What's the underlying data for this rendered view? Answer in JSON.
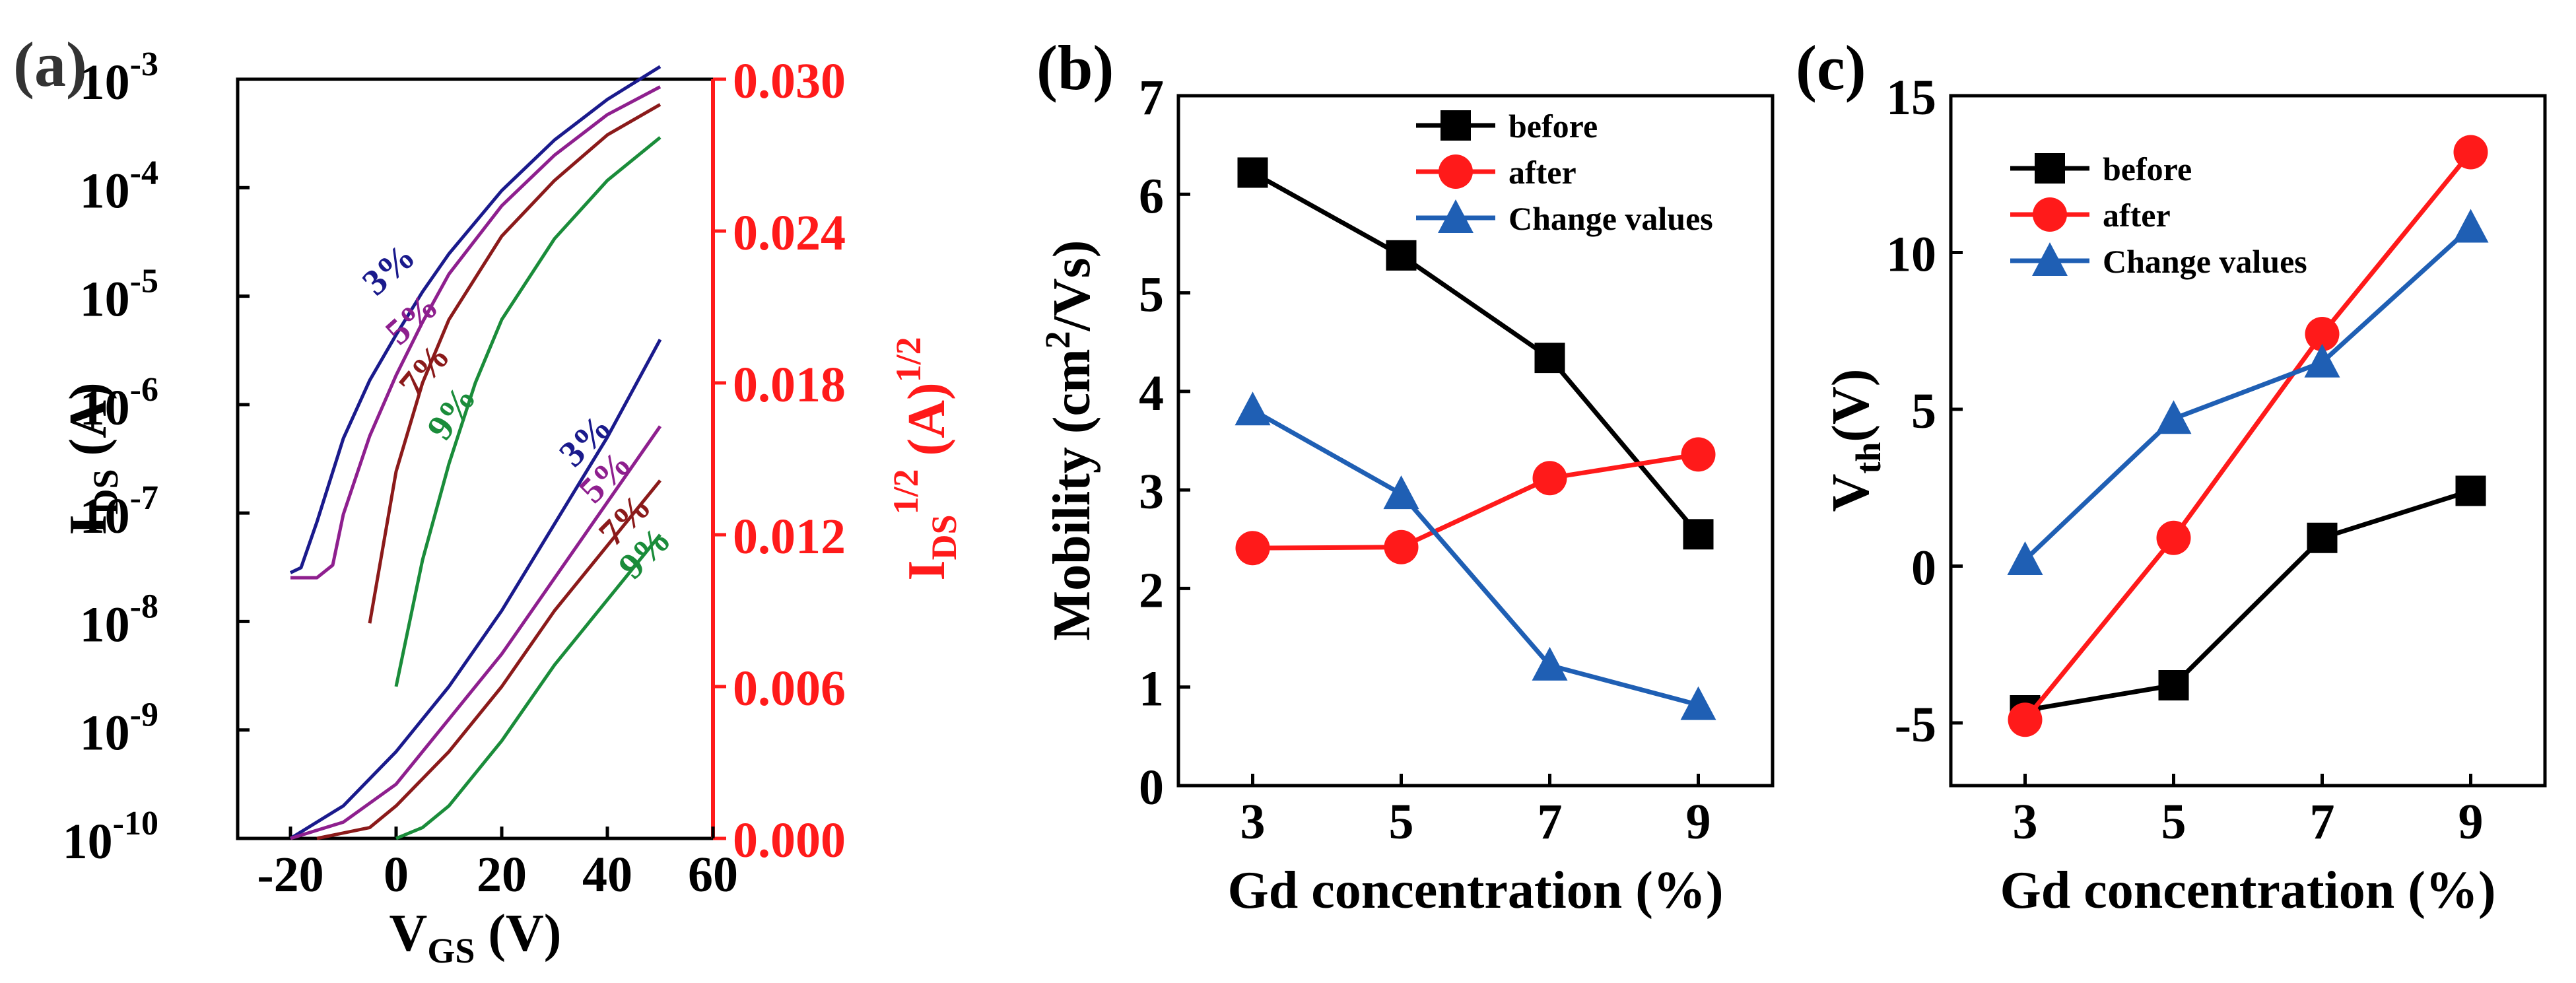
{
  "chart_data": [
    {
      "panel_label": "(a)",
      "type": "line",
      "title": "",
      "xlabel": "V",
      "xlabel_sub": "GS",
      "xlabel_unit": " (V)",
      "ylabel_left": "I",
      "ylabel_left_sub": "DS",
      "ylabel_left_unit": " (A)",
      "ylabel_right": "I",
      "ylabel_right_sub": "DS",
      "ylabel_right_sup": "1/2",
      "ylabel_right_unit": " (A)",
      "ylabel_right_unit_sup": "1/2",
      "xlim": [
        -30,
        60
      ],
      "xticks": [
        "-20",
        "0",
        "20",
        "40",
        "60"
      ],
      "xtick_values": [
        -20,
        0,
        20,
        40,
        60
      ],
      "ylim_left_log10": [
        -10,
        -3
      ],
      "yticks_left_base": "10",
      "yticks_left_exp": [
        "-10",
        "-9",
        "-8",
        "-7",
        "-6",
        "-5",
        "-4",
        "-3"
      ],
      "ylim_right": [
        0.0,
        0.03
      ],
      "yticks_right": [
        "0.000",
        "0.006",
        "0.012",
        "0.018",
        "0.024",
        "0.030"
      ],
      "series_labels": [
        "3%",
        "5%",
        "7%",
        "9%",
        "3%",
        "5%",
        "7%",
        "9%"
      ],
      "series": [
        {
          "name": "3%",
          "axis": "right",
          "color": "#1a1a8c",
          "x": [
            -20,
            -18,
            -15,
            -10,
            -5,
            0,
            5,
            10,
            20,
            30,
            40,
            50
          ],
          "y": [
            0.0105,
            0.0107,
            0.0125,
            0.0158,
            0.0181,
            0.0199,
            0.0216,
            0.0231,
            0.0256,
            0.0276,
            0.0292,
            0.0305
          ]
        },
        {
          "name": "5%",
          "axis": "right",
          "color": "#8e1f8e",
          "x": [
            -20,
            -15,
            -12,
            -10,
            -5,
            0,
            5,
            10,
            20,
            30,
            40,
            50
          ],
          "y": [
            0.0103,
            0.0103,
            0.0108,
            0.0128,
            0.0159,
            0.0183,
            0.0204,
            0.0223,
            0.025,
            0.027,
            0.0286,
            0.0297
          ]
        },
        {
          "name": "7%",
          "axis": "right",
          "color": "#8b1a1a",
          "x": [
            -5,
            0,
            5,
            10,
            20,
            30,
            40,
            50
          ],
          "y": [
            0.0085,
            0.0145,
            0.018,
            0.0205,
            0.0238,
            0.026,
            0.0278,
            0.029
          ]
        },
        {
          "name": "9%",
          "axis": "right",
          "color": "#1a8c3a",
          "x": [
            0,
            5,
            10,
            15,
            20,
            30,
            40,
            50
          ],
          "y": [
            0.006,
            0.011,
            0.0148,
            0.018,
            0.0205,
            0.0237,
            0.026,
            0.0277
          ]
        },
        {
          "name": "3%",
          "axis": "left",
          "color": "#1a1a8c",
          "x": [
            -20,
            -10,
            0,
            10,
            20,
            30,
            40,
            50
          ],
          "y": [
            -10.0,
            -9.7,
            -9.2,
            -8.6,
            -7.9,
            -7.1,
            -6.3,
            -5.4
          ]
        },
        {
          "name": "5%",
          "axis": "left",
          "color": "#8e1f8e",
          "x": [
            -20,
            -10,
            0,
            10,
            20,
            30,
            40,
            50
          ],
          "y": [
            -10.0,
            -9.85,
            -9.5,
            -8.9,
            -8.3,
            -7.6,
            -6.9,
            -6.2
          ]
        },
        {
          "name": "7%",
          "axis": "left",
          "color": "#8b1a1a",
          "x": [
            -15,
            -5,
            0,
            10,
            20,
            30,
            40,
            50
          ],
          "y": [
            -10.0,
            -9.9,
            -9.7,
            -9.2,
            -8.6,
            -7.9,
            -7.3,
            -6.7
          ]
        },
        {
          "name": "9%",
          "axis": "left",
          "color": "#1a8c3a",
          "x": [
            0,
            5,
            10,
            20,
            30,
            40,
            50
          ],
          "y": [
            -10.0,
            -9.9,
            -9.7,
            -9.1,
            -8.4,
            -7.8,
            -7.2
          ]
        }
      ]
    },
    {
      "panel_label": "(b)",
      "type": "line",
      "title": "",
      "xlabel": "Gd concentration (%)",
      "ylabel": "Mobility (cm",
      "ylabel_sup": "2",
      "ylabel_end": "/Vs)",
      "categories": [
        "3",
        "5",
        "7",
        "9"
      ],
      "x": [
        3,
        5,
        7,
        9
      ],
      "xlim": [
        2,
        10
      ],
      "ylim": [
        0,
        7
      ],
      "yticks": [
        "0",
        "1",
        "2",
        "3",
        "4",
        "5",
        "6",
        "7"
      ],
      "legend": "top-right",
      "series": [
        {
          "name": "before",
          "marker": "square",
          "color": "#000000",
          "values": [
            6.22,
            5.38,
            4.34,
            2.55
          ]
        },
        {
          "name": "after",
          "marker": "circle",
          "color": "#ff1a1a",
          "values": [
            2.41,
            2.42,
            3.12,
            3.36
          ]
        },
        {
          "name": "Change values",
          "marker": "triangle",
          "color": "#1f5fb4",
          "values": [
            3.81,
            2.96,
            1.22,
            0.82
          ]
        }
      ]
    },
    {
      "panel_label": "(c)",
      "type": "line",
      "title": "",
      "xlabel": "Gd concentration (%)",
      "ylabel": "V",
      "ylabel_sub": "th",
      "ylabel_end": "(V)",
      "categories": [
        "3",
        "5",
        "7",
        "9"
      ],
      "x": [
        3,
        5,
        7,
        9
      ],
      "xlim": [
        2,
        10
      ],
      "ylim": [
        -7,
        15
      ],
      "yticks": [
        "-5",
        "0",
        "5",
        "10",
        "15"
      ],
      "ytick_values": [
        -5,
        0,
        5,
        10,
        15
      ],
      "legend": "top-left",
      "series": [
        {
          "name": "before",
          "marker": "square",
          "color": "#000000",
          "values": [
            -4.6,
            -3.8,
            0.9,
            2.4
          ]
        },
        {
          "name": "after",
          "marker": "circle",
          "color": "#ff1a1a",
          "values": [
            -4.9,
            0.9,
            7.4,
            13.2
          ]
        },
        {
          "name": "Change values",
          "marker": "triangle",
          "color": "#1f5fb4",
          "values": [
            0.2,
            4.7,
            6.5,
            10.8
          ]
        }
      ]
    }
  ]
}
